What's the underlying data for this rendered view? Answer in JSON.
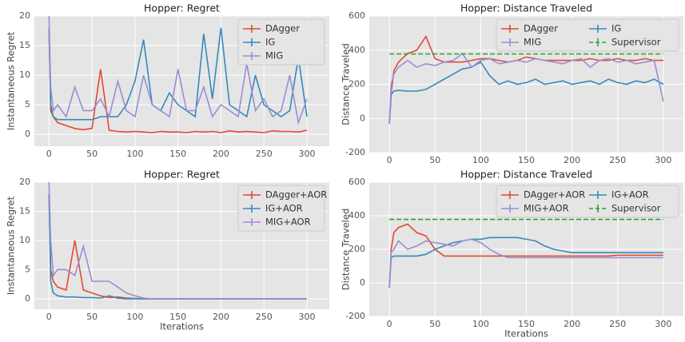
{
  "chart_data": [
    {
      "type": "line",
      "title": "Hopper: Regret",
      "ylabel": "Instantaneous Regret",
      "xlim": [
        -17,
        326
      ],
      "ylim": [
        -2,
        20
      ],
      "xticks": [
        0,
        50,
        100,
        150,
        200,
        250,
        300
      ],
      "yticks": [
        0,
        5,
        10,
        15,
        20
      ],
      "grid": true,
      "legend": "upper right",
      "legend_columns": 1,
      "x": [
        0,
        2,
        5,
        10,
        20,
        30,
        40,
        50,
        60,
        70,
        80,
        90,
        100,
        110,
        120,
        130,
        140,
        150,
        160,
        170,
        180,
        190,
        200,
        210,
        220,
        230,
        240,
        250,
        260,
        270,
        280,
        290,
        300
      ],
      "series": [
        {
          "name": "DAgger",
          "color": "#E24A33",
          "values": [
            18,
            4,
            3,
            2,
            1.5,
            1,
            0.8,
            1,
            11,
            0.7,
            0.5,
            0.4,
            0.5,
            0.4,
            0.3,
            0.5,
            0.4,
            0.4,
            0.3,
            0.5,
            0.4,
            0.5,
            0.3,
            0.6,
            0.4,
            0.5,
            0.4,
            0.3,
            0.6,
            0.5,
            0.5,
            0.4,
            0.7
          ]
        },
        {
          "name": "IG",
          "color": "#348ABD",
          "values": [
            18,
            5,
            3,
            2.5,
            2.5,
            2.5,
            2.5,
            2.5,
            3,
            3,
            3,
            5,
            9,
            16,
            5,
            4,
            7,
            5,
            4,
            3,
            17,
            6,
            18,
            5,
            4,
            3,
            10,
            5,
            4,
            3,
            4,
            13,
            3
          ]
        },
        {
          "name": "MIG",
          "color": "#988ED5",
          "values": [
            20,
            8,
            4,
            5,
            3,
            8,
            4,
            4,
            6,
            3,
            9,
            4,
            3,
            10,
            5,
            4,
            3,
            11,
            4,
            4,
            8,
            3,
            5,
            4,
            3,
            12,
            4,
            6,
            3,
            4,
            10,
            2,
            6
          ]
        }
      ]
    },
    {
      "type": "line",
      "title": "Hopper: Distance Traveled",
      "ylabel": "Distance Traveled",
      "xlim": [
        -22,
        322
      ],
      "ylim": [
        -200,
        600
      ],
      "xticks": [
        0,
        50,
        100,
        150,
        200,
        250,
        300
      ],
      "yticks": [
        -200,
        0,
        200,
        400,
        600
      ],
      "grid": true,
      "legend": "upper right",
      "legend_columns": 2,
      "x": [
        0,
        2,
        5,
        10,
        20,
        30,
        40,
        50,
        60,
        70,
        80,
        90,
        100,
        110,
        120,
        130,
        140,
        150,
        160,
        170,
        180,
        190,
        200,
        210,
        220,
        230,
        240,
        250,
        260,
        270,
        280,
        290,
        300
      ],
      "series": [
        {
          "name": "DAgger",
          "color": "#E24A33",
          "values": [
            -30,
            150,
            280,
            330,
            380,
            400,
            480,
            350,
            330,
            330,
            330,
            340,
            350,
            350,
            340,
            330,
            340,
            360,
            350,
            340,
            340,
            340,
            340,
            340,
            350,
            340,
            340,
            350,
            340,
            340,
            350,
            340,
            340
          ]
        },
        {
          "name": "IG",
          "color": "#348ABD",
          "values": [
            -30,
            140,
            160,
            165,
            160,
            160,
            170,
            200,
            230,
            260,
            290,
            300,
            330,
            250,
            200,
            220,
            200,
            210,
            230,
            200,
            210,
            220,
            200,
            210,
            220,
            200,
            230,
            210,
            200,
            220,
            210,
            230,
            200
          ]
        },
        {
          "name": "MIG",
          "color": "#988ED5",
          "values": [
            -30,
            200,
            260,
            300,
            340,
            300,
            320,
            310,
            330,
            340,
            380,
            300,
            340,
            350,
            320,
            330,
            340,
            330,
            350,
            340,
            330,
            320,
            340,
            350,
            300,
            340,
            350,
            330,
            340,
            320,
            330,
            340,
            100
          ]
        },
        {
          "name": "Supervisor",
          "color": "#2CA02C",
          "dashed": true,
          "x": [
            0,
            300
          ],
          "values": [
            378,
            378
          ]
        }
      ]
    },
    {
      "type": "line",
      "title": "Hopper: Regret",
      "ylabel": "Instantaneous Regret",
      "xlabel": "Iterations",
      "xlim": [
        -17,
        326
      ],
      "ylim": [
        -1.8,
        20
      ],
      "xticks": [
        0,
        50,
        100,
        150,
        200,
        250,
        300
      ],
      "yticks": [
        0,
        5,
        10,
        15,
        20
      ],
      "grid": true,
      "legend": "upper right",
      "legend_columns": 1,
      "x": [
        0,
        2,
        5,
        10,
        20,
        30,
        40,
        50,
        60,
        70,
        80,
        90,
        100,
        110,
        120,
        130,
        140,
        150,
        160,
        170,
        180,
        190,
        200,
        210,
        220,
        230,
        240,
        250,
        260,
        270,
        280,
        290,
        300
      ],
      "series": [
        {
          "name": "DAgger+AOR",
          "color": "#E24A33",
          "values": [
            18,
            5,
            3,
            2,
            1.5,
            10,
            1.5,
            1,
            0.5,
            0.2,
            0.3,
            0.1,
            0.05,
            0,
            0,
            0,
            0,
            0,
            0,
            0,
            0,
            0,
            0,
            0,
            0,
            0,
            0,
            0,
            0,
            0,
            0,
            0,
            0
          ]
        },
        {
          "name": "IG+AOR",
          "color": "#348ABD",
          "values": [
            18,
            3,
            1,
            0.5,
            0.3,
            0.3,
            0.2,
            0.2,
            0.1,
            0.5,
            0.1,
            0,
            0,
            0,
            0,
            0,
            0,
            0,
            0,
            0,
            0,
            0,
            0,
            0,
            0,
            0,
            0,
            0,
            0,
            0,
            0,
            0,
            0
          ]
        },
        {
          "name": "MIG+AOR",
          "color": "#988ED5",
          "values": [
            20,
            10,
            4,
            5,
            5,
            4,
            9,
            3,
            3,
            3,
            2,
            1,
            0.5,
            0.1,
            0,
            0,
            0,
            0,
            0,
            0,
            0,
            0,
            0,
            0,
            0,
            0,
            0,
            0,
            0,
            0,
            0,
            0,
            0
          ]
        }
      ]
    },
    {
      "type": "line",
      "title": "Hopper: Distance Traveled",
      "ylabel": "Distance Traveled",
      "xlabel": "Iterations",
      "xlim": [
        -22,
        322
      ],
      "ylim": [
        -200,
        600
      ],
      "xticks": [
        0,
        50,
        100,
        150,
        200,
        250,
        300
      ],
      "yticks": [
        -200,
        0,
        200,
        400,
        600
      ],
      "grid": true,
      "legend": "upper right",
      "legend_columns": 2,
      "x": [
        0,
        2,
        5,
        10,
        20,
        30,
        40,
        50,
        60,
        70,
        80,
        90,
        100,
        110,
        120,
        130,
        140,
        150,
        160,
        170,
        180,
        190,
        200,
        210,
        220,
        230,
        240,
        250,
        260,
        270,
        280,
        290,
        300
      ],
      "series": [
        {
          "name": "DAgger+AOR",
          "color": "#E24A33",
          "values": [
            -30,
            200,
            300,
            330,
            350,
            300,
            280,
            200,
            160,
            160,
            160,
            160,
            160,
            160,
            160,
            160,
            160,
            160,
            160,
            160,
            160,
            160,
            160,
            160,
            160,
            160,
            160,
            165,
            165,
            165,
            165,
            165,
            165
          ]
        },
        {
          "name": "IG+AOR",
          "color": "#348ABD",
          "values": [
            -30,
            150,
            160,
            160,
            160,
            160,
            170,
            200,
            220,
            240,
            250,
            260,
            260,
            270,
            270,
            270,
            270,
            260,
            250,
            220,
            200,
            190,
            180,
            180,
            180,
            180,
            180,
            180,
            180,
            180,
            180,
            180,
            180
          ]
        },
        {
          "name": "MIG+AOR",
          "color": "#988ED5",
          "values": [
            -30,
            180,
            200,
            250,
            200,
            220,
            250,
            240,
            230,
            220,
            250,
            260,
            240,
            200,
            170,
            150,
            150,
            150,
            150,
            150,
            150,
            150,
            150,
            150,
            150,
            150,
            150,
            150,
            150,
            150,
            150,
            150,
            150
          ]
        },
        {
          "name": "Supervisor",
          "color": "#2CA02C",
          "dashed": true,
          "x": [
            0,
            300
          ],
          "values": [
            378,
            378
          ]
        }
      ]
    }
  ]
}
